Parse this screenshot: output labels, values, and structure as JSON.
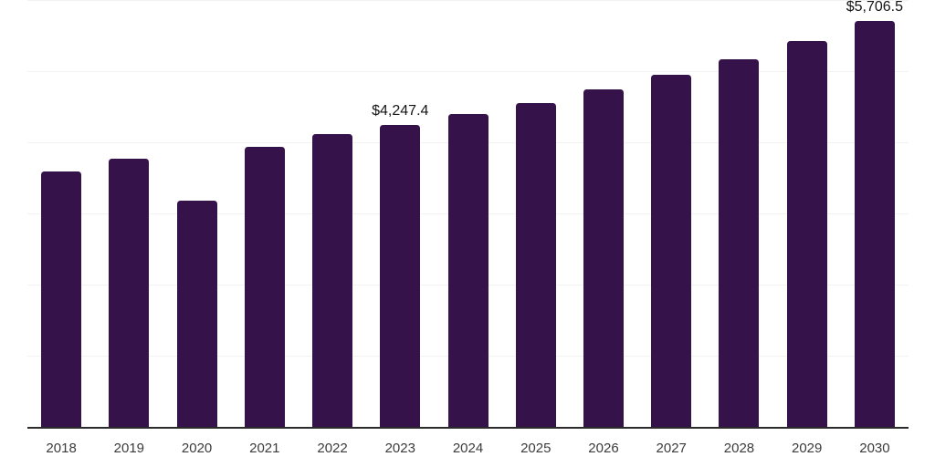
{
  "chart_data": {
    "type": "bar",
    "title": "",
    "xlabel": "",
    "ylabel": "",
    "categories": [
      "2018",
      "2019",
      "2020",
      "2021",
      "2022",
      "2023",
      "2024",
      "2025",
      "2026",
      "2027",
      "2028",
      "2029",
      "2030"
    ],
    "values": [
      3600,
      3770,
      3185,
      3940,
      4125,
      4247.4,
      4405,
      4560,
      4750,
      4955,
      5175,
      5430,
      5706.5
    ],
    "annotations": [
      {
        "category_index": 5,
        "text": "$4,247.4"
      },
      {
        "category_index": 12,
        "text": "$5,706.5"
      }
    ],
    "ylim": [
      0,
      6000
    ],
    "grid_step": 1000,
    "grid": "horizontal-only",
    "legend": "none",
    "y_axis_labels_visible": false,
    "bar_color": "#36124a",
    "grid_color": "#f2f2f2",
    "axis_color": "#2b2b2b",
    "tick_label_color": "#3b3b3b",
    "value_label_color": "#141414"
  }
}
